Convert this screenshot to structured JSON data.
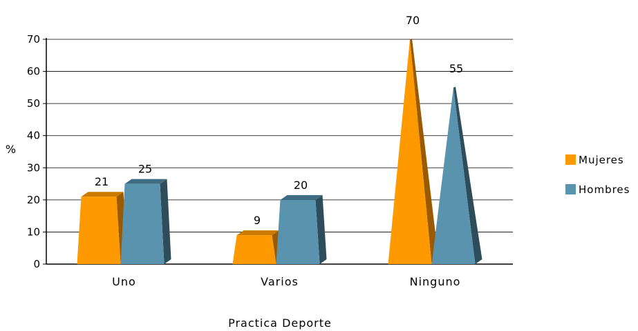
{
  "chart_data": {
    "type": "bar",
    "categories": [
      "Uno",
      "Varios",
      "Ninguno"
    ],
    "series": [
      {
        "name": "Mujeres",
        "values": [
          21,
          9,
          70
        ],
        "color": "#FF9900",
        "side_color": "#9A5A00",
        "top_color": "#CC7A00"
      },
      {
        "name": "Hombres",
        "values": [
          25,
          20,
          55
        ],
        "color": "#5A93AE",
        "side_color": "#2E4D5A",
        "top_color": "#3F6E84"
      }
    ],
    "title": "",
    "xlabel": "Practica Deporte",
    "ylabel": "%",
    "ylim": [
      0,
      70
    ],
    "yticks": [
      0,
      10,
      20,
      30,
      40,
      50,
      60,
      70
    ],
    "grid": true,
    "legend_position": "right",
    "shapes": [
      "trapezoid",
      "trapezoid",
      "cone"
    ]
  }
}
